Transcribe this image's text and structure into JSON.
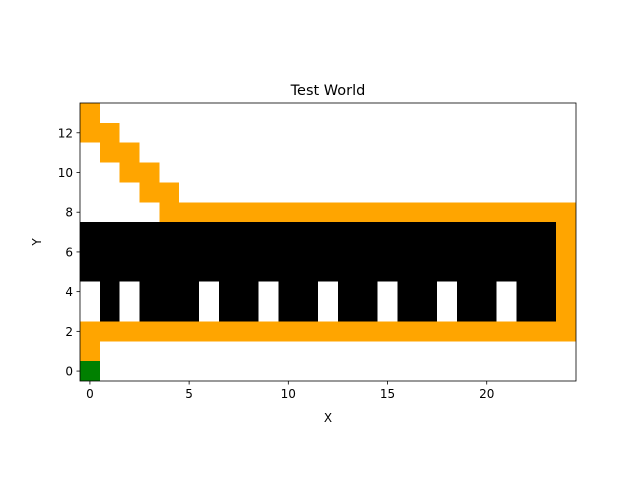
{
  "chart_data": {
    "type": "heatmap",
    "title": "Test World",
    "xlabel": "X",
    "ylabel": "Y",
    "xlim": [
      -0.5,
      24.5
    ],
    "ylim": [
      -0.5,
      13.5
    ],
    "xticks": [
      0,
      5,
      10,
      15,
      20
    ],
    "yticks": [
      0,
      2,
      4,
      6,
      8,
      10,
      12
    ],
    "grid": false,
    "colors": {
      "free": "#ffffff",
      "obstacle": "#000000",
      "path": "#ffa500",
      "start": "#008000"
    },
    "cells": {
      "obstacle": [
        {
          "x": [
            0,
            23
          ],
          "y": [
            5,
            7
          ]
        },
        {
          "x": [
            1,
            1
          ],
          "y": [
            3,
            4
          ]
        },
        {
          "x": [
            3,
            5
          ],
          "y": [
            3,
            4
          ]
        },
        {
          "x": [
            7,
            8
          ],
          "y": [
            3,
            4
          ]
        },
        {
          "x": [
            10,
            11
          ],
          "y": [
            3,
            4
          ]
        },
        {
          "x": [
            13,
            14
          ],
          "y": [
            3,
            4
          ]
        },
        {
          "x": [
            16,
            17
          ],
          "y": [
            3,
            4
          ]
        },
        {
          "x": [
            19,
            20
          ],
          "y": [
            3,
            4
          ]
        },
        {
          "x": [
            22,
            23
          ],
          "y": [
            3,
            4
          ]
        }
      ],
      "path": [
        {
          "x": [
            0,
            0
          ],
          "y": [
            1,
            2
          ]
        },
        {
          "x": [
            1,
            24
          ],
          "y": [
            2,
            2
          ]
        },
        {
          "x": [
            24,
            24
          ],
          "y": [
            3,
            8
          ]
        },
        {
          "x": [
            4,
            23
          ],
          "y": [
            8,
            8
          ]
        },
        {
          "x": [
            3,
            4
          ],
          "y": [
            9,
            9
          ]
        },
        {
          "x": [
            2,
            3
          ],
          "y": [
            10,
            10
          ]
        },
        {
          "x": [
            1,
            2
          ],
          "y": [
            11,
            11
          ]
        },
        {
          "x": [
            0,
            1
          ],
          "y": [
            12,
            12
          ]
        },
        {
          "x": [
            0,
            0
          ],
          "y": [
            13,
            13
          ]
        }
      ],
      "start": [
        {
          "x": [
            0,
            0
          ],
          "y": [
            0,
            0
          ]
        }
      ]
    }
  }
}
